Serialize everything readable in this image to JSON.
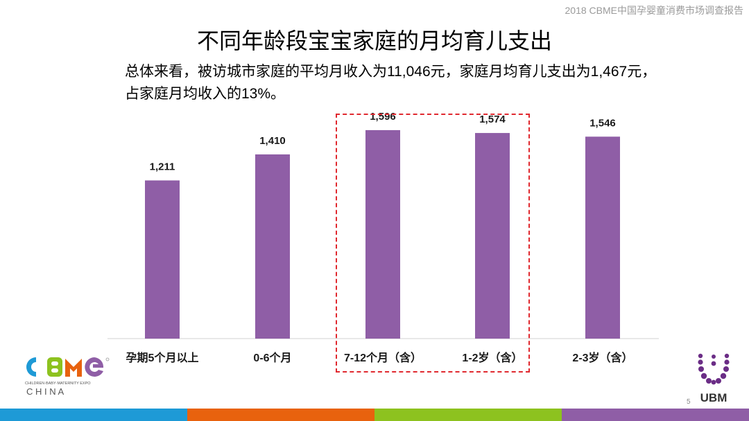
{
  "header": {
    "report_name": "2018 CBME中国孕婴童消费市场调查报告"
  },
  "title": "不同年龄段宝宝家庭的月均育儿支出",
  "summary": {
    "line1": "总体来看，被访城市家庭的平均月收入为11,046元，家庭月均育儿支出为1,467元，",
    "line2": "占家庭月均收入的13%。"
  },
  "chart_data": {
    "type": "bar",
    "categories": [
      "孕期5个月以上",
      "0-6个月",
      "7-12个月（含）",
      "1-2岁（含）",
      "2-3岁（含）"
    ],
    "values": [
      1211,
      1410,
      1596,
      1574,
      1546
    ],
    "data_labels": [
      "1,211",
      "1,410",
      "1,596",
      "1,574",
      "1,546"
    ],
    "title": "",
    "xlabel": "",
    "ylabel": "",
    "ylim": [
      0,
      1850
    ],
    "grid": false,
    "bar_color": "#8f5ea6",
    "highlighted_categories": [
      "7-12个月（含）",
      "1-2岁（含）"
    ],
    "highlight_color": "#e0282e"
  },
  "logos": {
    "cbme": {
      "text": "CBME",
      "tagline": "CHILDREN·BABY·MATERNITY EXPO",
      "sub": "C H I N A"
    },
    "ubm": {
      "text": "UBM"
    }
  },
  "page_number": "5",
  "bottom_band_colors": [
    "#1e9ad6",
    "#e8620e",
    "#8dc21f",
    "#8f5ea6"
  ]
}
